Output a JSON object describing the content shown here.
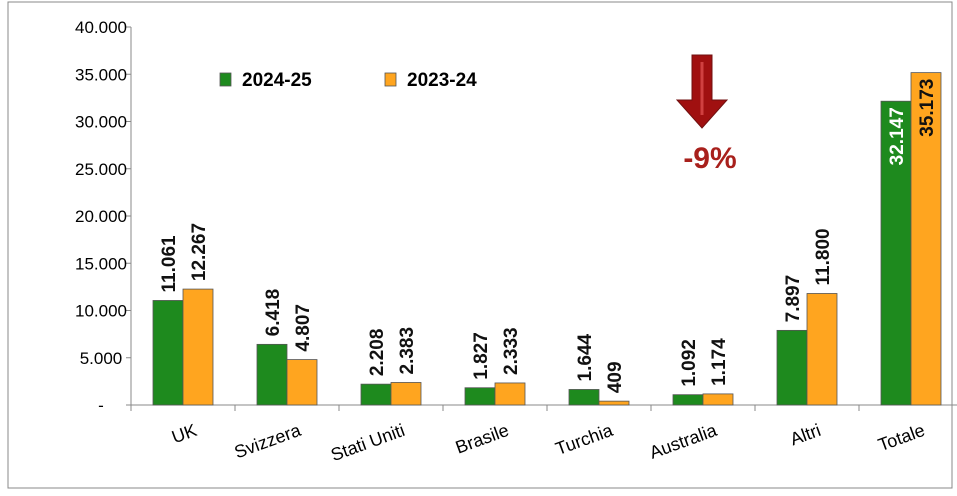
{
  "chart_data": {
    "type": "bar",
    "categories": [
      "UK",
      "Svizzera",
      "Stati Uniti",
      "Brasile",
      "Turchia",
      "Australia",
      "Altri",
      "Totale"
    ],
    "series": [
      {
        "name": "2024-25",
        "color": "#1e8a1e",
        "values": [
          11061,
          6418,
          2208,
          1827,
          1644,
          1092,
          7897,
          32147
        ],
        "value_labels": [
          "11.061",
          "6.418",
          "2.208",
          "1.827",
          "1.644",
          "1.092",
          "7.897",
          "32.147"
        ]
      },
      {
        "name": "2023-24",
        "color": "#ffa51f",
        "values": [
          12267,
          4807,
          2383,
          2333,
          409,
          1174,
          11800,
          35173
        ],
        "value_labels": [
          "12.267",
          "4.807",
          "2.383",
          "2.333",
          "409",
          "1.174",
          "11.800",
          "35.173"
        ]
      }
    ],
    "ylim": [
      0,
      40000
    ],
    "yticks": [
      {
        "value": 0,
        "label": "-"
      },
      {
        "value": 5000,
        "label": "5.000"
      },
      {
        "value": 10000,
        "label": "10.000"
      },
      {
        "value": 15000,
        "label": "15.000"
      },
      {
        "value": 20000,
        "label": "20.000"
      },
      {
        "value": 25000,
        "label": "25.000"
      },
      {
        "value": 30000,
        "label": "30.000"
      },
      {
        "value": 35000,
        "label": "35.000"
      },
      {
        "value": 40000,
        "label": "40.000"
      }
    ],
    "annotation": "-9%"
  }
}
